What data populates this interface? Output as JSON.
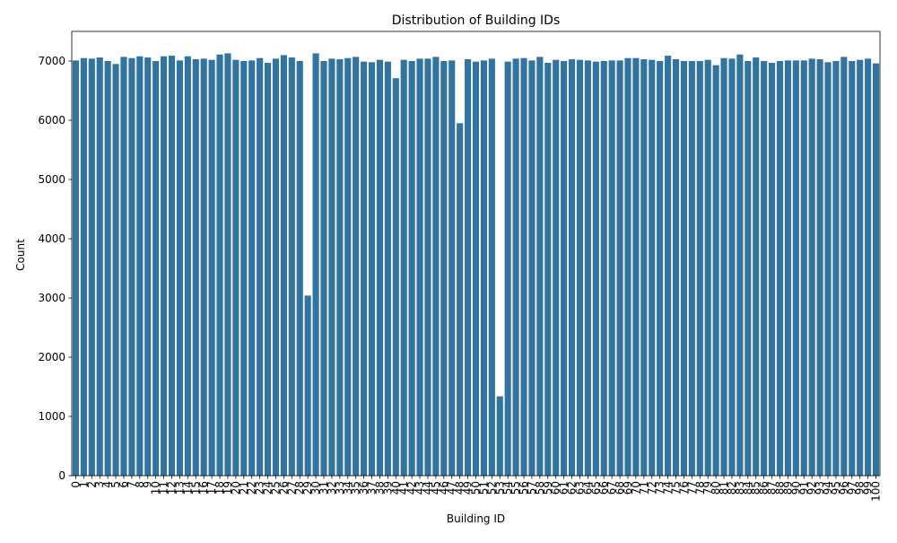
{
  "chart_data": {
    "type": "bar",
    "title": "Distribution of Building IDs",
    "xlabel": "Building ID",
    "ylabel": "Count",
    "ylim": [
      0,
      7500
    ],
    "yticks": [
      0,
      1000,
      2000,
      3000,
      4000,
      5000,
      6000,
      7000
    ],
    "grid": false,
    "bar_color": "#3274a1",
    "categories": [
      "0",
      "1",
      "2",
      "3",
      "4",
      "5",
      "6",
      "7",
      "8",
      "9",
      "10",
      "11",
      "12",
      "13",
      "14",
      "15",
      "16",
      "17",
      "18",
      "19",
      "20",
      "21",
      "22",
      "23",
      "24",
      "25",
      "26",
      "27",
      "28",
      "29",
      "30",
      "31",
      "32",
      "33",
      "34",
      "35",
      "36",
      "37",
      "38",
      "39",
      "40",
      "41",
      "42",
      "43",
      "44",
      "45",
      "46",
      "47",
      "48",
      "49",
      "50",
      "51",
      "52",
      "53",
      "54",
      "55",
      "56",
      "57",
      "58",
      "59",
      "60",
      "61",
      "62",
      "63",
      "64",
      "65",
      "66",
      "67",
      "68",
      "69",
      "70",
      "71",
      "72",
      "73",
      "74",
      "75",
      "76",
      "77",
      "78",
      "79",
      "80",
      "81",
      "82",
      "83",
      "84",
      "85",
      "86",
      "87",
      "88",
      "89",
      "90",
      "91",
      "92",
      "93",
      "94",
      "95",
      "96",
      "97",
      "98",
      "99",
      "100"
    ],
    "values": [
      7010,
      7050,
      7040,
      7060,
      7000,
      6950,
      7070,
      7050,
      7080,
      7060,
      7000,
      7080,
      7090,
      7010,
      7080,
      7030,
      7040,
      7020,
      7110,
      7130,
      7020,
      7000,
      7010,
      7050,
      6970,
      7040,
      7100,
      7060,
      7000,
      3040,
      7130,
      7000,
      7040,
      7030,
      7050,
      7070,
      6990,
      6980,
      7020,
      6990,
      6710,
      7020,
      7000,
      7040,
      7040,
      7070,
      7000,
      7010,
      5950,
      7030,
      6990,
      7010,
      7040,
      1340,
      6990,
      7040,
      7050,
      7010,
      7070,
      6970,
      7020,
      7000,
      7030,
      7020,
      7010,
      6990,
      7000,
      7010,
      7010,
      7050,
      7050,
      7030,
      7020,
      7000,
      7090,
      7030,
      7000,
      7000,
      7000,
      7020,
      6930,
      7050,
      7040,
      7110,
      7000,
      7060,
      7000,
      6970,
      7000,
      7010,
      7010,
      7010,
      7040,
      7030,
      6980,
      7000,
      7070,
      7000,
      7020,
      7040,
      6960
    ]
  }
}
